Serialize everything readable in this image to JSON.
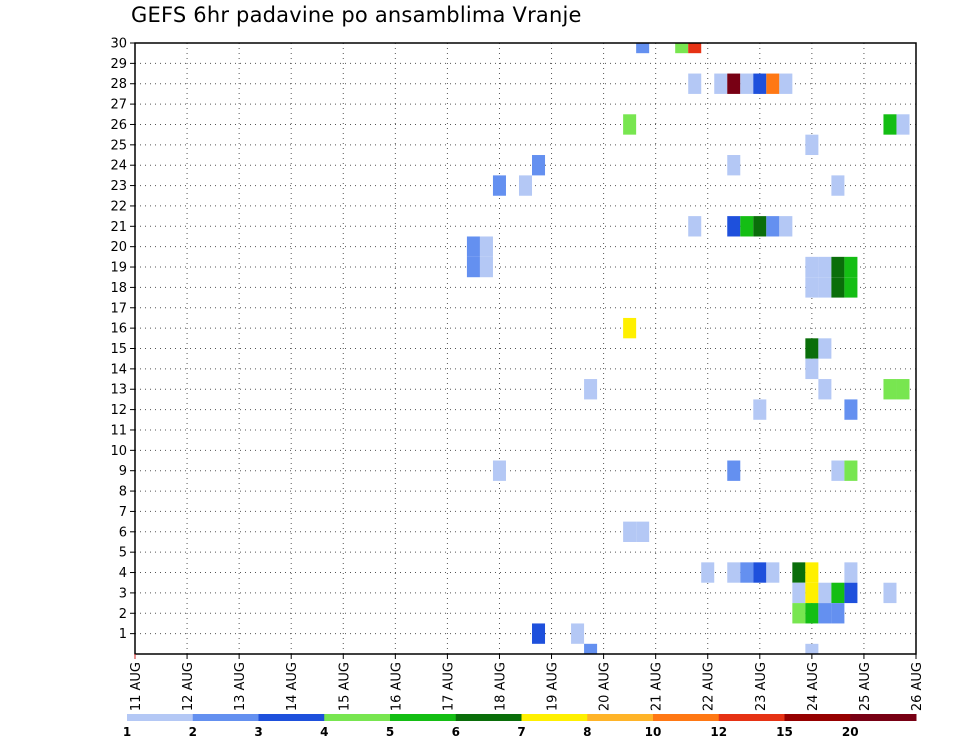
{
  "chart_data": {
    "type": "heatmap",
    "title": "GEFS 6hr padavine po ansamblima Vranje",
    "x_tick_labels": [
      "11 AUG",
      "12 AUG",
      "13 AUG",
      "14 AUG",
      "15 AUG",
      "16 AUG",
      "17 AUG",
      "18 AUG",
      "19 AUG",
      "20 AUG",
      "21 AUG",
      "22 AUG",
      "23 AUG",
      "24 AUG",
      "25 AUG",
      "26 AUG"
    ],
    "x_range_days": [
      0,
      15
    ],
    "y_tick_labels": [
      "1",
      "2",
      "3",
      "4",
      "5",
      "6",
      "7",
      "8",
      "9",
      "10",
      "11",
      "12",
      "13",
      "14",
      "15",
      "16",
      "17",
      "18",
      "19",
      "20",
      "21",
      "22",
      "23",
      "24",
      "25",
      "26",
      "27",
      "28",
      "29",
      "30"
    ],
    "y_range": [
      0,
      30
    ],
    "grid": "dotted",
    "colorbar": {
      "boundaries": [
        "1",
        "2",
        "3",
        "4",
        "5",
        "6",
        "7",
        "8",
        "10",
        "12",
        "15",
        "20"
      ],
      "colors": [
        "#b4c8f5",
        "#6490f0",
        "#1e50dc",
        "#78e650",
        "#14be14",
        "#0a6e0a",
        "#fff000",
        "#ffb428",
        "#ff7814",
        "#e63214",
        "#960000",
        "#780014"
      ]
    },
    "cells": [
      {
        "day": 9.75,
        "member": 30,
        "color": "#6490f0"
      },
      {
        "day": 10.5,
        "member": 30,
        "color": "#78e650"
      },
      {
        "day": 10.75,
        "member": 30,
        "color": "#e63214"
      },
      {
        "day": 10.75,
        "member": 28,
        "color": "#b4c8f5"
      },
      {
        "day": 11.25,
        "member": 28,
        "color": "#b4c8f5"
      },
      {
        "day": 11.5,
        "member": 28,
        "color": "#780014"
      },
      {
        "day": 11.75,
        "member": 28,
        "color": "#b4c8f5"
      },
      {
        "day": 12.0,
        "member": 28,
        "color": "#1e50dc"
      },
      {
        "day": 12.25,
        "member": 28,
        "color": "#ff7814"
      },
      {
        "day": 12.5,
        "member": 28,
        "color": "#b4c8f5"
      },
      {
        "day": 9.5,
        "member": 26,
        "color": "#78e650"
      },
      {
        "day": 14.5,
        "member": 26,
        "color": "#14be14"
      },
      {
        "day": 14.75,
        "member": 26,
        "color": "#b4c8f5"
      },
      {
        "day": 13.0,
        "member": 25,
        "color": "#b4c8f5"
      },
      {
        "day": 7.75,
        "member": 24,
        "color": "#6490f0"
      },
      {
        "day": 11.5,
        "member": 24,
        "color": "#b4c8f5"
      },
      {
        "day": 7.0,
        "member": 23,
        "color": "#6490f0"
      },
      {
        "day": 7.5,
        "member": 23,
        "color": "#b4c8f5"
      },
      {
        "day": 13.5,
        "member": 23,
        "color": "#b4c8f5"
      },
      {
        "day": 10.75,
        "member": 21,
        "color": "#b4c8f5"
      },
      {
        "day": 11.5,
        "member": 21,
        "color": "#1e50dc"
      },
      {
        "day": 11.75,
        "member": 21,
        "color": "#14be14"
      },
      {
        "day": 12.0,
        "member": 21,
        "color": "#0a6e0a"
      },
      {
        "day": 12.25,
        "member": 21,
        "color": "#6490f0"
      },
      {
        "day": 12.5,
        "member": 21,
        "color": "#b4c8f5"
      },
      {
        "day": 6.5,
        "member": 20,
        "color": "#6490f0"
      },
      {
        "day": 6.75,
        "member": 20,
        "color": "#b4c8f5"
      },
      {
        "day": 6.5,
        "member": 19,
        "color": "#6490f0"
      },
      {
        "day": 6.75,
        "member": 19,
        "color": "#b4c8f5"
      },
      {
        "day": 13.0,
        "member": 19,
        "color": "#b4c8f5"
      },
      {
        "day": 13.25,
        "member": 19,
        "color": "#b4c8f5"
      },
      {
        "day": 13.5,
        "member": 19,
        "color": "#0a6e0a"
      },
      {
        "day": 13.75,
        "member": 19,
        "color": "#14be14"
      },
      {
        "day": 13.0,
        "member": 18,
        "color": "#b4c8f5"
      },
      {
        "day": 13.25,
        "member": 18,
        "color": "#b4c8f5"
      },
      {
        "day": 13.5,
        "member": 18,
        "color": "#0a6e0a"
      },
      {
        "day": 13.75,
        "member": 18,
        "color": "#14be14"
      },
      {
        "day": 9.5,
        "member": 16,
        "color": "#fff000"
      },
      {
        "day": 13.0,
        "member": 15,
        "color": "#0a6e0a"
      },
      {
        "day": 13.25,
        "member": 15,
        "color": "#b4c8f5"
      },
      {
        "day": 13.0,
        "member": 14,
        "color": "#b4c8f5"
      },
      {
        "day": 8.75,
        "member": 13,
        "color": "#b4c8f5"
      },
      {
        "day": 13.25,
        "member": 13,
        "color": "#b4c8f5"
      },
      {
        "day": 14.5,
        "member": 13,
        "color": "#78e650"
      },
      {
        "day": 14.75,
        "member": 13,
        "color": "#78e650"
      },
      {
        "day": 12.0,
        "member": 12,
        "color": "#b4c8f5"
      },
      {
        "day": 13.75,
        "member": 12,
        "color": "#6490f0"
      },
      {
        "day": 7.0,
        "member": 9,
        "color": "#b4c8f5"
      },
      {
        "day": 11.5,
        "member": 9,
        "color": "#6490f0"
      },
      {
        "day": 13.5,
        "member": 9,
        "color": "#b4c8f5"
      },
      {
        "day": 13.75,
        "member": 9,
        "color": "#78e650"
      },
      {
        "day": 9.5,
        "member": 6,
        "color": "#b4c8f5"
      },
      {
        "day": 9.75,
        "member": 6,
        "color": "#b4c8f5"
      },
      {
        "day": 11.0,
        "member": 4,
        "color": "#b4c8f5"
      },
      {
        "day": 11.5,
        "member": 4,
        "color": "#b4c8f5"
      },
      {
        "day": 11.75,
        "member": 4,
        "color": "#6490f0"
      },
      {
        "day": 12.0,
        "member": 4,
        "color": "#1e50dc"
      },
      {
        "day": 12.25,
        "member": 4,
        "color": "#b4c8f5"
      },
      {
        "day": 12.75,
        "member": 4,
        "color": "#0a6e0a"
      },
      {
        "day": 13.0,
        "member": 4,
        "color": "#fff000"
      },
      {
        "day": 13.75,
        "member": 4,
        "color": "#b4c8f5"
      },
      {
        "day": 12.75,
        "member": 3,
        "color": "#b4c8f5"
      },
      {
        "day": 13.0,
        "member": 3,
        "color": "#fff000"
      },
      {
        "day": 13.25,
        "member": 3,
        "color": "#b4c8f5"
      },
      {
        "day": 13.5,
        "member": 3,
        "color": "#14be14"
      },
      {
        "day": 13.75,
        "member": 3,
        "color": "#1e50dc"
      },
      {
        "day": 14.5,
        "member": 3,
        "color": "#b4c8f5"
      },
      {
        "day": 12.75,
        "member": 2,
        "color": "#78e650"
      },
      {
        "day": 13.0,
        "member": 2,
        "color": "#14be14"
      },
      {
        "day": 13.25,
        "member": 2,
        "color": "#6490f0"
      },
      {
        "day": 13.5,
        "member": 2,
        "color": "#6490f0"
      },
      {
        "day": 7.75,
        "member": 1,
        "color": "#1e50dc"
      },
      {
        "day": 8.5,
        "member": 1,
        "color": "#b4c8f5"
      },
      {
        "day": 8.75,
        "member": 0,
        "color": "#6490f0"
      },
      {
        "day": 13.0,
        "member": 0,
        "color": "#b4c8f5"
      }
    ]
  }
}
